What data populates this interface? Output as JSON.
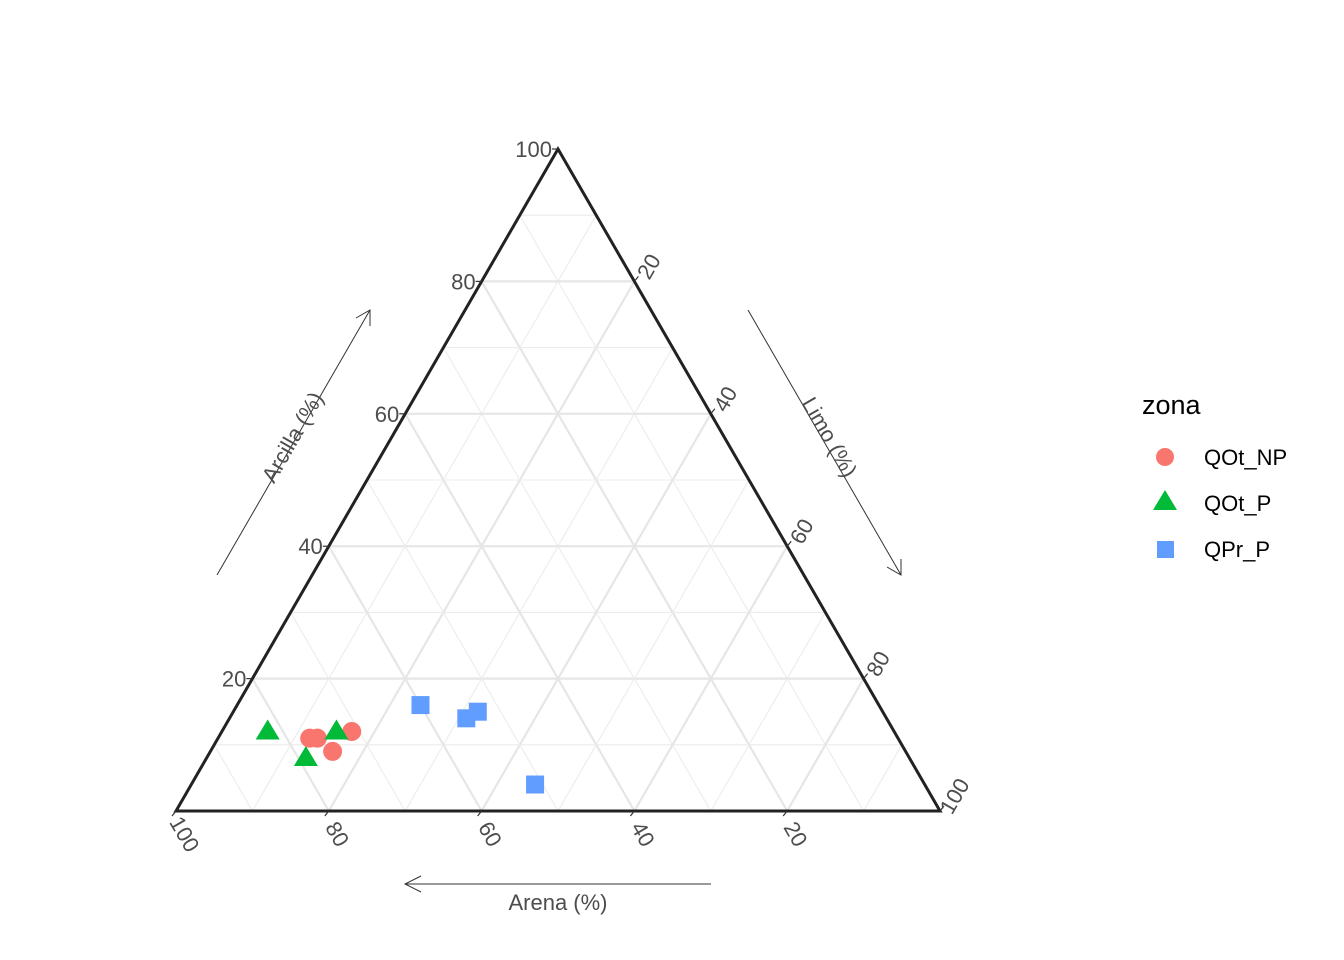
{
  "chart_data": {
    "type": "scatter",
    "subtype": "ternary",
    "title": "",
    "axes": {
      "bottom": {
        "label": "Arena (%)",
        "ticks": [
          "100",
          "80",
          "60",
          "40",
          "20"
        ],
        "direction": "decreasing left-to-right"
      },
      "left": {
        "label": "Arcilla (%)",
        "ticks": [
          "20",
          "40",
          "60",
          "80",
          "100"
        ],
        "direction": "increasing bottom-to-top"
      },
      "right": {
        "label": "Limo (%)",
        "ticks": [
          "20",
          "40",
          "60",
          "80",
          "100"
        ],
        "direction": "increasing top-to-bottom"
      }
    },
    "range": [
      0,
      100
    ],
    "grid": true,
    "legend": {
      "title": "zona",
      "position": "right"
    },
    "series": [
      {
        "name": "QOt_NP",
        "color": "#F8766D",
        "shape": "circle",
        "points": [
          {
            "arena": 77,
            "limo": 12,
            "arcilla": 11
          },
          {
            "arena": 76,
            "limo": 13,
            "arcilla": 11
          },
          {
            "arena": 75,
            "limo": 16,
            "arcilla": 9
          },
          {
            "arena": 71,
            "limo": 17,
            "arcilla": 12
          }
        ]
      },
      {
        "name": "QOt_P",
        "color": "#00BA38",
        "shape": "triangle",
        "points": [
          {
            "arena": 82,
            "limo": 6,
            "arcilla": 12
          },
          {
            "arena": 79,
            "limo": 13,
            "arcilla": 8
          },
          {
            "arena": 73,
            "limo": 15,
            "arcilla": 12
          }
        ]
      },
      {
        "name": "QPr_P",
        "color": "#619CFF",
        "shape": "square",
        "points": [
          {
            "arena": 60,
            "limo": 24,
            "arcilla": 16
          },
          {
            "arena": 55,
            "limo": 31,
            "arcilla": 14
          },
          {
            "arena": 53,
            "limo": 32,
            "arcilla": 15
          },
          {
            "arena": 51,
            "limo": 45,
            "arcilla": 4
          }
        ]
      }
    ]
  }
}
